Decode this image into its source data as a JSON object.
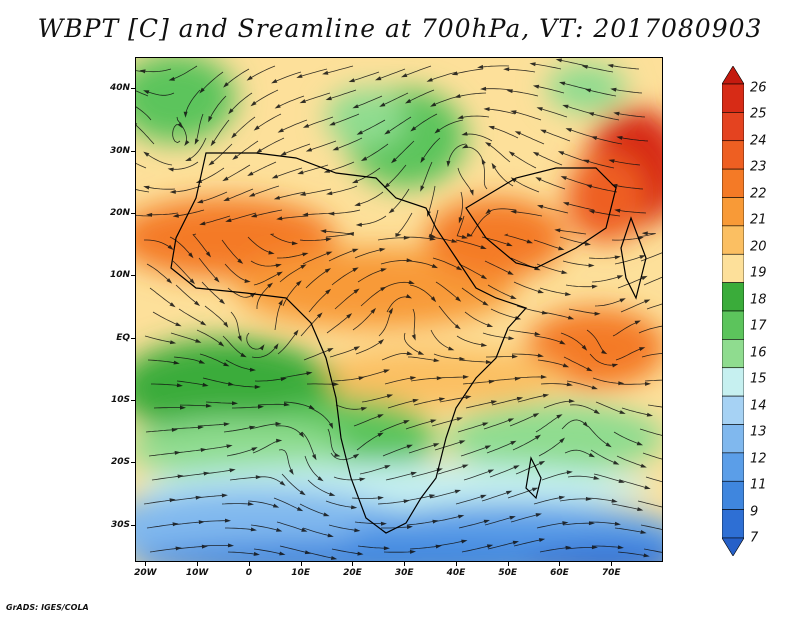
{
  "title": "WBPT [C] and Sreamline at 700hPa, VT: 2017080903",
  "credit": "GrADS: IGES/COLA",
  "axes": {
    "lat_labels": [
      "40N",
      "30N",
      "20N",
      "10N",
      "EQ",
      "10S",
      "20S",
      "30S"
    ],
    "lat_values": [
      40,
      30,
      20,
      10,
      0,
      -10,
      -20,
      -30
    ],
    "lon_labels": [
      "20W",
      "10W",
      "0",
      "10E",
      "20E",
      "30E",
      "40E",
      "50E",
      "60E",
      "70E"
    ],
    "lon_values": [
      -20,
      -10,
      0,
      10,
      20,
      30,
      40,
      50,
      60,
      70
    ],
    "lat_range": [
      -36,
      45
    ],
    "lon_range": [
      -22,
      80
    ]
  },
  "colorbar": {
    "labels": [
      "26",
      "25",
      "24",
      "23",
      "22",
      "21",
      "20",
      "19",
      "18",
      "17",
      "16",
      "15",
      "14",
      "13",
      "12",
      "11",
      "9",
      "7"
    ],
    "colors": [
      "#c41a0f",
      "#d72b16",
      "#e44320",
      "#ee5f22",
      "#f47a26",
      "#f89a37",
      "#fbbf62",
      "#fde09a",
      "#3aac3a",
      "#5cc45c",
      "#8fdc8f",
      "#c6f0f0",
      "#a6d2f4",
      "#80b8ee",
      "#5b9ee8",
      "#3f86de",
      "#2e6fd4",
      "#2660c8"
    ]
  }
}
